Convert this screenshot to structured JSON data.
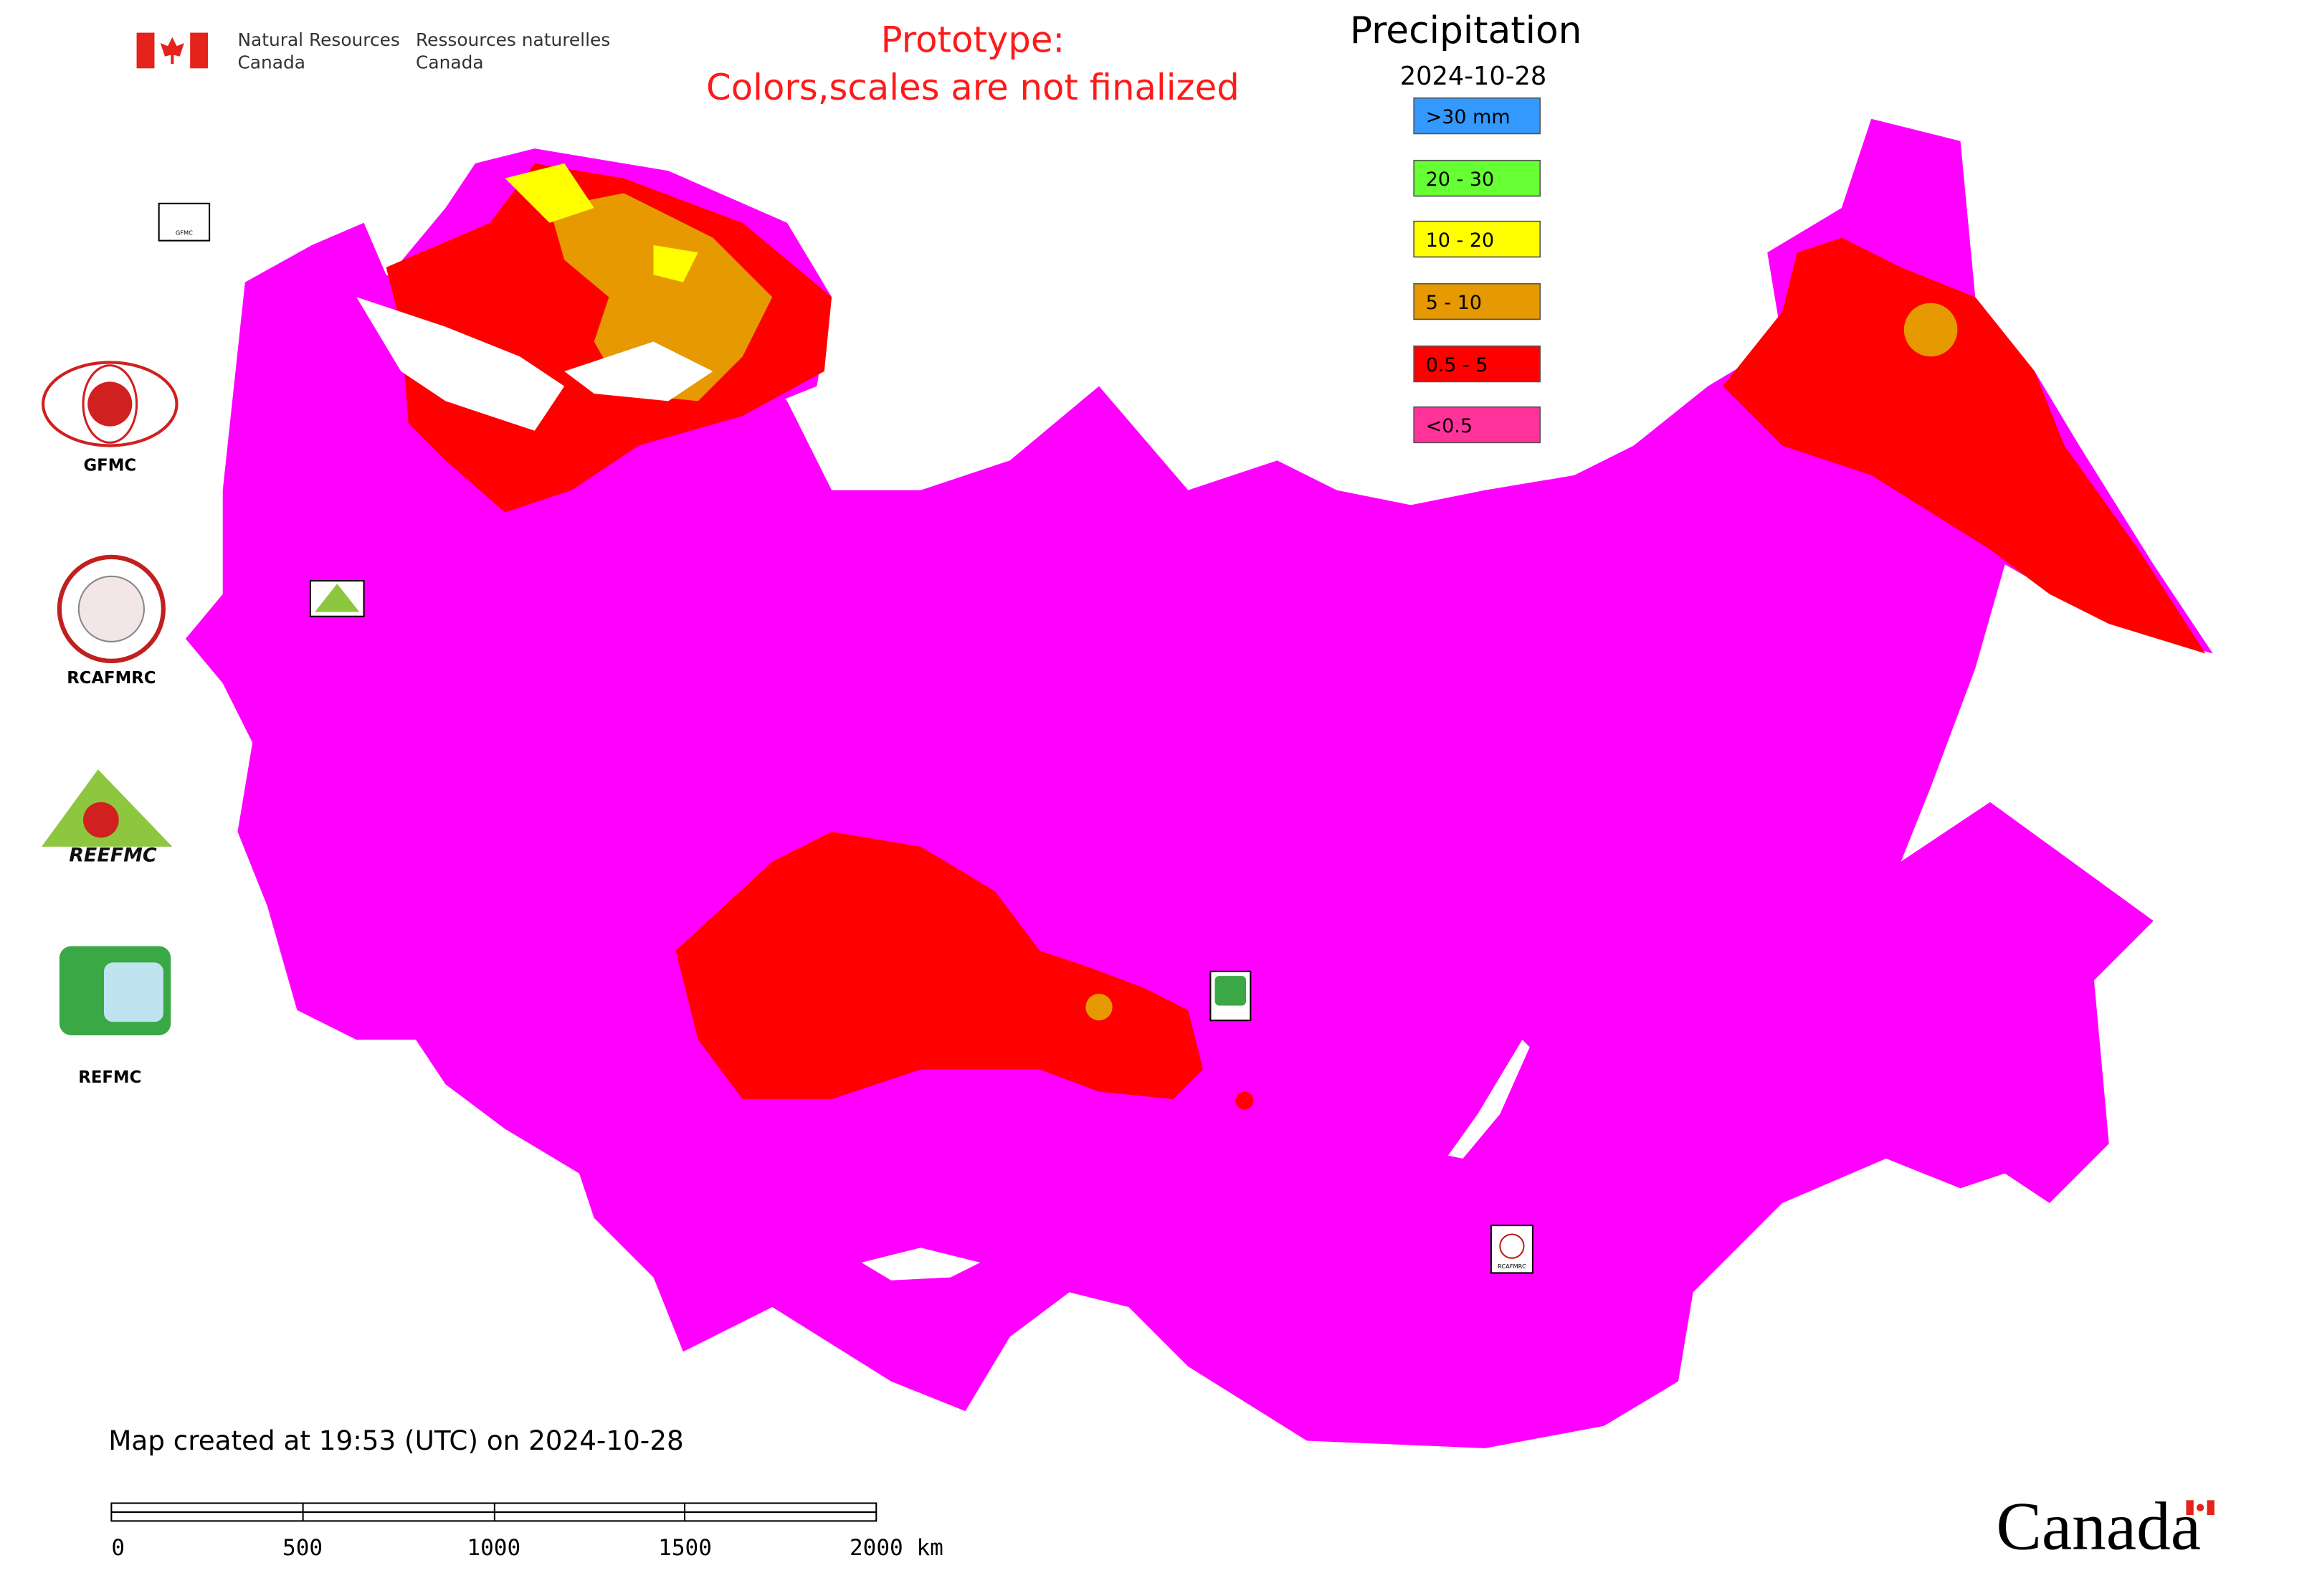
{
  "header": {
    "department_en": [
      "Natural Resources",
      "Canada"
    ],
    "department_fr": [
      "Ressources naturelles",
      "Canada"
    ],
    "notice": [
      "Prototype:",
      "Colors,scales are not finalized"
    ]
  },
  "legend": {
    "title": "Precipitation",
    "date": "2024-10-28",
    "items": [
      {
        "label": ">30 mm",
        "color": "#3399ff"
      },
      {
        "label": "20 - 30",
        "color": "#66ff33"
      },
      {
        "label": "10 - 20",
        "color": "#ffff00"
      },
      {
        "label": "5 - 10",
        "color": "#e69900"
      },
      {
        "label": "0.5 - 5",
        "color": "#ff0000"
      },
      {
        "label": "<0.5",
        "color": "#ff3399"
      }
    ]
  },
  "logos": [
    "GFMC",
    "RCAFMRC",
    "REEFMC",
    "REFMC"
  ],
  "footer": {
    "created": "Map created at 19:53 (UTC) on 2024-10-28",
    "scale_labels": [
      "0",
      "500",
      "1000",
      "1500",
      "2000 km"
    ],
    "wordmark": "Canada"
  }
}
